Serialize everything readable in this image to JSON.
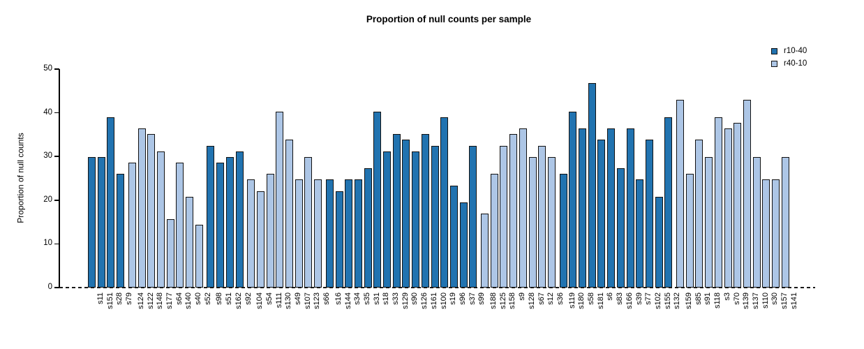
{
  "chart_data": {
    "type": "bar",
    "title": "Proportion of null counts per sample",
    "xlabel": "",
    "ylabel": "Proportion of null counts",
    "ylim": [
      0,
      50
    ],
    "yticks": [
      0,
      10,
      20,
      30,
      40,
      50
    ],
    "grid": false,
    "zero_line_style": "dashed",
    "legend": {
      "position": "top-right",
      "entries": [
        {
          "name": "r10-40",
          "color": "#2173b0"
        },
        {
          "name": "r40-10",
          "color": "#adc6e6"
        }
      ]
    },
    "bars": [
      {
        "sample": "s11",
        "value": 29.9,
        "series": "r10-40"
      },
      {
        "sample": "s151",
        "value": 29.9,
        "series": "r10-40"
      },
      {
        "sample": "s28",
        "value": 39.0,
        "series": "r10-40"
      },
      {
        "sample": "s79",
        "value": 26.0,
        "series": "r10-40"
      },
      {
        "sample": "s124",
        "value": 28.6,
        "series": "r40-10"
      },
      {
        "sample": "s122",
        "value": 36.4,
        "series": "r40-10"
      },
      {
        "sample": "s148",
        "value": 35.1,
        "series": "r40-10"
      },
      {
        "sample": "s177",
        "value": 31.2,
        "series": "r40-10"
      },
      {
        "sample": "s64",
        "value": 15.6,
        "series": "r40-10"
      },
      {
        "sample": "s140",
        "value": 28.6,
        "series": "r40-10"
      },
      {
        "sample": "s40",
        "value": 20.8,
        "series": "r40-10"
      },
      {
        "sample": "s52",
        "value": 14.3,
        "series": "r40-10"
      },
      {
        "sample": "s98",
        "value": 32.5,
        "series": "r10-40"
      },
      {
        "sample": "s51",
        "value": 28.6,
        "series": "r10-40"
      },
      {
        "sample": "s162",
        "value": 29.9,
        "series": "r10-40"
      },
      {
        "sample": "s92",
        "value": 31.2,
        "series": "r10-40"
      },
      {
        "sample": "s104",
        "value": 24.7,
        "series": "r40-10"
      },
      {
        "sample": "s54",
        "value": 22.1,
        "series": "r40-10"
      },
      {
        "sample": "s111",
        "value": 26.0,
        "series": "r40-10"
      },
      {
        "sample": "s130",
        "value": 40.3,
        "series": "r40-10"
      },
      {
        "sample": "s49",
        "value": 33.8,
        "series": "r40-10"
      },
      {
        "sample": "s107",
        "value": 24.7,
        "series": "r40-10"
      },
      {
        "sample": "s123",
        "value": 29.9,
        "series": "r40-10"
      },
      {
        "sample": "s66",
        "value": 24.7,
        "series": "r40-10"
      },
      {
        "sample": "s16",
        "value": 24.7,
        "series": "r10-40"
      },
      {
        "sample": "s144",
        "value": 22.1,
        "series": "r10-40"
      },
      {
        "sample": "s34",
        "value": 24.7,
        "series": "r10-40"
      },
      {
        "sample": "s35",
        "value": 24.7,
        "series": "r10-40"
      },
      {
        "sample": "s31",
        "value": 27.3,
        "series": "r10-40"
      },
      {
        "sample": "s18",
        "value": 40.3,
        "series": "r10-40"
      },
      {
        "sample": "s33",
        "value": 31.2,
        "series": "r10-40"
      },
      {
        "sample": "s129",
        "value": 35.1,
        "series": "r10-40"
      },
      {
        "sample": "s90",
        "value": 33.8,
        "series": "r10-40"
      },
      {
        "sample": "s126",
        "value": 31.2,
        "series": "r10-40"
      },
      {
        "sample": "s161",
        "value": 35.1,
        "series": "r10-40"
      },
      {
        "sample": "s100",
        "value": 32.5,
        "series": "r10-40"
      },
      {
        "sample": "s19",
        "value": 39.0,
        "series": "r10-40"
      },
      {
        "sample": "s96",
        "value": 23.4,
        "series": "r10-40"
      },
      {
        "sample": "s37",
        "value": 19.5,
        "series": "r10-40"
      },
      {
        "sample": "s99",
        "value": 32.5,
        "series": "r10-40"
      },
      {
        "sample": "s188",
        "value": 16.9,
        "series": "r40-10"
      },
      {
        "sample": "s125",
        "value": 26.0,
        "series": "r40-10"
      },
      {
        "sample": "s158",
        "value": 32.5,
        "series": "r40-10"
      },
      {
        "sample": "s9",
        "value": 35.1,
        "series": "r40-10"
      },
      {
        "sample": "s128",
        "value": 36.4,
        "series": "r40-10"
      },
      {
        "sample": "s67",
        "value": 29.9,
        "series": "r40-10"
      },
      {
        "sample": "s12",
        "value": 32.5,
        "series": "r40-10"
      },
      {
        "sample": "s36",
        "value": 29.9,
        "series": "r40-10"
      },
      {
        "sample": "s119",
        "value": 26.0,
        "series": "r10-40"
      },
      {
        "sample": "s180",
        "value": 40.3,
        "series": "r10-40"
      },
      {
        "sample": "s58",
        "value": 36.4,
        "series": "r10-40"
      },
      {
        "sample": "s181",
        "value": 46.8,
        "series": "r10-40"
      },
      {
        "sample": "s6",
        "value": 33.8,
        "series": "r10-40"
      },
      {
        "sample": "s83",
        "value": 36.4,
        "series": "r10-40"
      },
      {
        "sample": "s166",
        "value": 27.3,
        "series": "r10-40"
      },
      {
        "sample": "s39",
        "value": 36.4,
        "series": "r10-40"
      },
      {
        "sample": "s77",
        "value": 24.7,
        "series": "r10-40"
      },
      {
        "sample": "s102",
        "value": 33.8,
        "series": "r10-40"
      },
      {
        "sample": "s155",
        "value": 20.8,
        "series": "r10-40"
      },
      {
        "sample": "s132",
        "value": 39.0,
        "series": "r10-40"
      },
      {
        "sample": "s159",
        "value": 42.9,
        "series": "r40-10"
      },
      {
        "sample": "s85",
        "value": 26.0,
        "series": "r40-10"
      },
      {
        "sample": "s91",
        "value": 33.8,
        "series": "r40-10"
      },
      {
        "sample": "s118",
        "value": 29.9,
        "series": "r40-10"
      },
      {
        "sample": "s3",
        "value": 39.0,
        "series": "r40-10"
      },
      {
        "sample": "s70",
        "value": 36.4,
        "series": "r40-10"
      },
      {
        "sample": "s139",
        "value": 37.7,
        "series": "r40-10"
      },
      {
        "sample": "s137",
        "value": 42.9,
        "series": "r40-10"
      },
      {
        "sample": "s110",
        "value": 29.9,
        "series": "r40-10"
      },
      {
        "sample": "s30",
        "value": 24.7,
        "series": "r40-10"
      },
      {
        "sample": "s157",
        "value": 24.7,
        "series": "r40-10"
      },
      {
        "sample": "s141",
        "value": 29.9,
        "series": "r40-10"
      }
    ]
  }
}
